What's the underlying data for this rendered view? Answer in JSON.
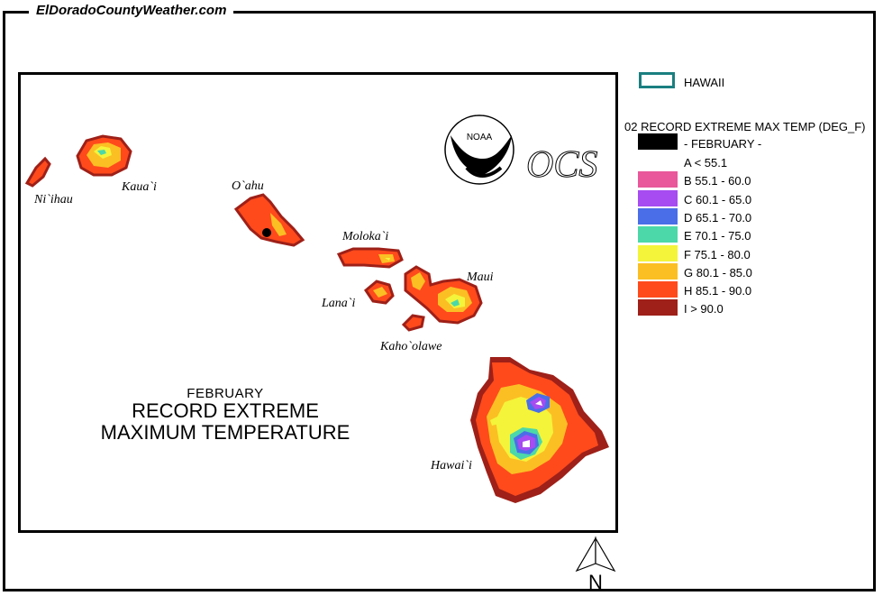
{
  "site": {
    "title": "ElDoradoCountyWeather.com"
  },
  "map": {
    "title_small": "FEBRUARY",
    "title_line1": "RECORD EXTREME",
    "title_line2": "MAXIMUM TEMPERATURE",
    "islands": [
      "Ni`ihau",
      "Kaua`i",
      "O`ahu",
      "Moloka`i",
      "Lana`i",
      "Maui",
      "Kaho`olawe",
      "Hawai`i"
    ],
    "logos": {
      "noaa": "NOAA",
      "ocs": "OCS"
    },
    "north_label": "N"
  },
  "legend": {
    "region_label": "HAWAII",
    "region_color": "#1a7f80",
    "title": "02 RECORD EXTREME MAX TEMP (DEG_F)",
    "month_label": "- FEBRUARY -",
    "classes": [
      {
        "label": "A < 55.1",
        "color": "#ffffff"
      },
      {
        "label": "B 55.1 - 60.0",
        "color": "#e8589a"
      },
      {
        "label": "C 60.1 - 65.0",
        "color": "#a64cf0"
      },
      {
        "label": "D 65.1 - 70.0",
        "color": "#4a6ee8"
      },
      {
        "label": "E 70.1 - 75.0",
        "color": "#4cd8a8"
      },
      {
        "label": "F 75.1 - 80.0",
        "color": "#f4f43a"
      },
      {
        "label": "G 80.1 - 85.0",
        "color": "#fbbf24"
      },
      {
        "label": "H 85.1 - 90.0",
        "color": "#ff4a1c"
      },
      {
        "label": "I > 90.0",
        "color": "#9e2018"
      }
    ]
  }
}
